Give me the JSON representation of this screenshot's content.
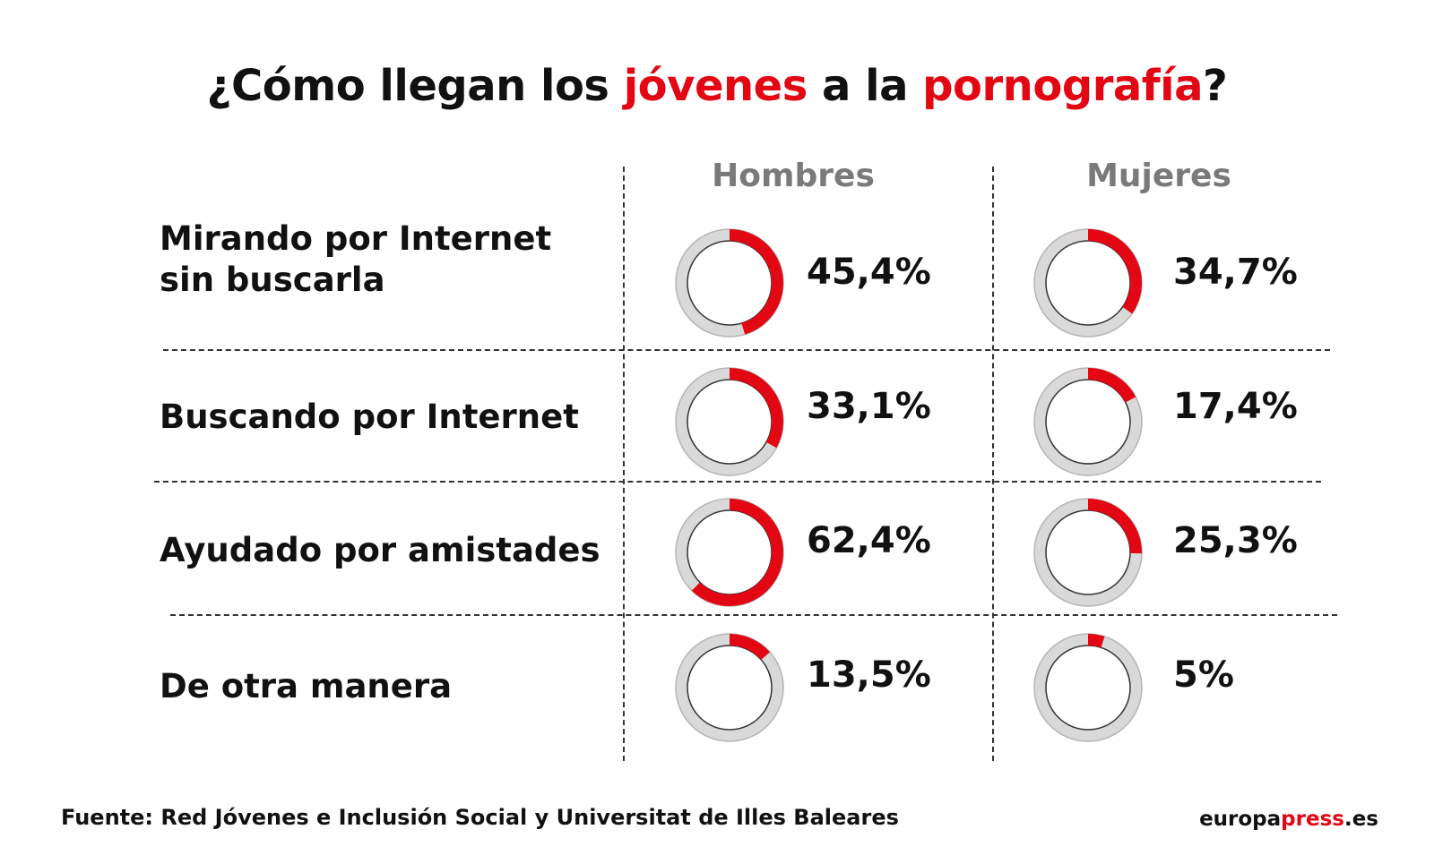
{
  "title": {
    "part1": "¿Cómo llegan los ",
    "highlight1": "jóvenes",
    "part2": " a la ",
    "highlight2": "pornografía",
    "part3": "?"
  },
  "colors": {
    "accent": "#e30613",
    "ring_bg": "#d9d9d9",
    "header_gray": "#7a7a7a"
  },
  "chart_data": {
    "type": "donut-table",
    "columns": [
      "Hombres",
      "Mujeres"
    ],
    "rows": [
      {
        "label_lines": [
          "Mirando por Internet",
          "sin buscarla"
        ],
        "hombres": 45.4,
        "hombres_label": "45,4%",
        "mujeres": 34.7,
        "mujeres_label": "34,7%"
      },
      {
        "label_lines": [
          "Buscando por Internet"
        ],
        "hombres": 33.1,
        "hombres_label": "33,1%",
        "mujeres": 17.4,
        "mujeres_label": "17,4%"
      },
      {
        "label_lines": [
          "Ayudado por amistades"
        ],
        "hombres": 62.4,
        "hombres_label": "62,4%",
        "mujeres": 25.3,
        "mujeres_label": "25,3%"
      },
      {
        "label_lines": [
          "De otra manera"
        ],
        "hombres": 13.5,
        "hombres_label": "13,5%",
        "mujeres": 5,
        "mujeres_label": "5%"
      }
    ],
    "unit": "%"
  },
  "footer": {
    "source": "Fuente: Red Jóvenes e Inclusión Social y Universitat de Illes Baleares",
    "brand_prefix": "europa",
    "brand_highlight": "press",
    "brand_suffix": ".es"
  }
}
